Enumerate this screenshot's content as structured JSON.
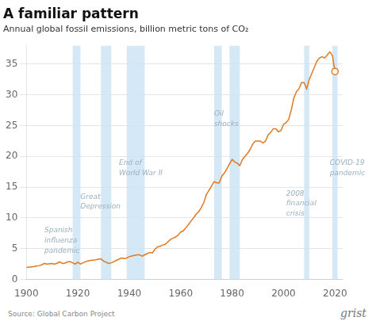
{
  "chart_data": {
    "type": "line",
    "title": "A familiar pattern",
    "subtitle": "Annual global fossil emissions, billion metric tons of CO₂",
    "source": "Source: Global Carbon Project",
    "watermark": "grist",
    "color": "#E07820",
    "shaded_color": "#cce4f5",
    "shaded_regions": [
      [
        1918,
        1921
      ],
      [
        1929,
        1933
      ],
      [
        1939,
        1946
      ],
      [
        1973,
        1976
      ],
      [
        1979,
        1983
      ],
      [
        2008,
        2010
      ],
      [
        2019,
        2021
      ]
    ],
    "annotations": [
      {
        "x": 1907,
        "y": 8.5,
        "text": "Spanish\ninfluenza\npandemic"
      },
      {
        "x": 1921,
        "y": 14.0,
        "text": "Great\nDepression"
      },
      {
        "x": 1936,
        "y": 19.5,
        "text": "End of\nWorld War II"
      },
      {
        "x": 1973,
        "y": 27.5,
        "text": "Oil\nshocks"
      },
      {
        "x": 2001,
        "y": 14.5,
        "text": "2008\nfinancial\ncrisis"
      },
      {
        "x": 2018,
        "y": 19.5,
        "text": "COVID-19\npandemic"
      }
    ],
    "end_marker": {
      "x": 2020,
      "y": 33.8,
      "marker": "open_circle"
    },
    "x": [
      1900,
      1901,
      1902,
      1903,
      1904,
      1905,
      1906,
      1907,
      1908,
      1909,
      1910,
      1911,
      1912,
      1913,
      1914,
      1915,
      1916,
      1917,
      1918,
      1919,
      1920,
      1921,
      1922,
      1923,
      1924,
      1925,
      1926,
      1927,
      1928,
      1929,
      1930,
      1931,
      1932,
      1933,
      1934,
      1935,
      1936,
      1937,
      1938,
      1939,
      1940,
      1941,
      1942,
      1943,
      1944,
      1945,
      1946,
      1947,
      1948,
      1949,
      1950,
      1951,
      1952,
      1953,
      1954,
      1955,
      1956,
      1957,
      1958,
      1959,
      1960,
      1961,
      1962,
      1963,
      1964,
      1965,
      1966,
      1967,
      1968,
      1969,
      1970,
      1971,
      1972,
      1973,
      1974,
      1975,
      1976,
      1977,
      1978,
      1979,
      1980,
      1981,
      1982,
      1983,
      1984,
      1985,
      1986,
      1987,
      1988,
      1989,
      1990,
      1991,
      1992,
      1993,
      1994,
      1995,
      1996,
      1997,
      1998,
      1999,
      2000,
      2001,
      2002,
      2003,
      2004,
      2005,
      2006,
      2007,
      2008,
      2009,
      2010,
      2011,
      2012,
      2013,
      2014,
      2015,
      2016,
      2017,
      2018,
      2019,
      2020
    ],
    "values": [
      1.95,
      2.0,
      2.05,
      2.1,
      2.2,
      2.25,
      2.4,
      2.6,
      2.5,
      2.55,
      2.6,
      2.5,
      2.65,
      2.85,
      2.6,
      2.65,
      2.85,
      2.9,
      2.7,
      2.5,
      2.8,
      2.5,
      2.7,
      2.9,
      3.0,
      3.1,
      3.15,
      3.2,
      3.3,
      3.35,
      3.0,
      2.8,
      2.6,
      2.7,
      2.9,
      3.1,
      3.3,
      3.5,
      3.4,
      3.5,
      3.7,
      3.8,
      3.9,
      4.0,
      4.0,
      3.8,
      4.0,
      4.2,
      4.4,
      4.3,
      4.9,
      5.3,
      5.4,
      5.6,
      5.7,
      6.1,
      6.5,
      6.7,
      6.9,
      7.2,
      7.7,
      7.9,
      8.4,
      8.9,
      9.5,
      10.0,
      10.6,
      11.0,
      11.7,
      12.5,
      13.8,
      14.5,
      15.2,
      15.9,
      15.7,
      15.7,
      16.8,
      17.3,
      18.0,
      18.8,
      19.5,
      19.1,
      18.9,
      18.5,
      19.5,
      20.0,
      20.5,
      21.1,
      22.0,
      22.5,
      22.5,
      22.5,
      22.2,
      22.5,
      23.5,
      23.9,
      24.5,
      24.5,
      24.0,
      24.2,
      25.2,
      25.5,
      26.0,
      27.5,
      29.5,
      30.5,
      31.0,
      32.0,
      32.0,
      31.0,
      32.5,
      33.5,
      34.5,
      35.5,
      36.0,
      36.2,
      36.0,
      36.5,
      37.0,
      36.4,
      33.8
    ],
    "xlim": [
      1900,
      2023
    ],
    "ylim": [
      0,
      38
    ],
    "xticks": [
      1900,
      1920,
      1940,
      1960,
      1980,
      2000,
      2020
    ],
    "yticks": [
      0,
      5,
      10,
      15,
      20,
      25,
      30,
      35
    ],
    "grid": "y"
  }
}
